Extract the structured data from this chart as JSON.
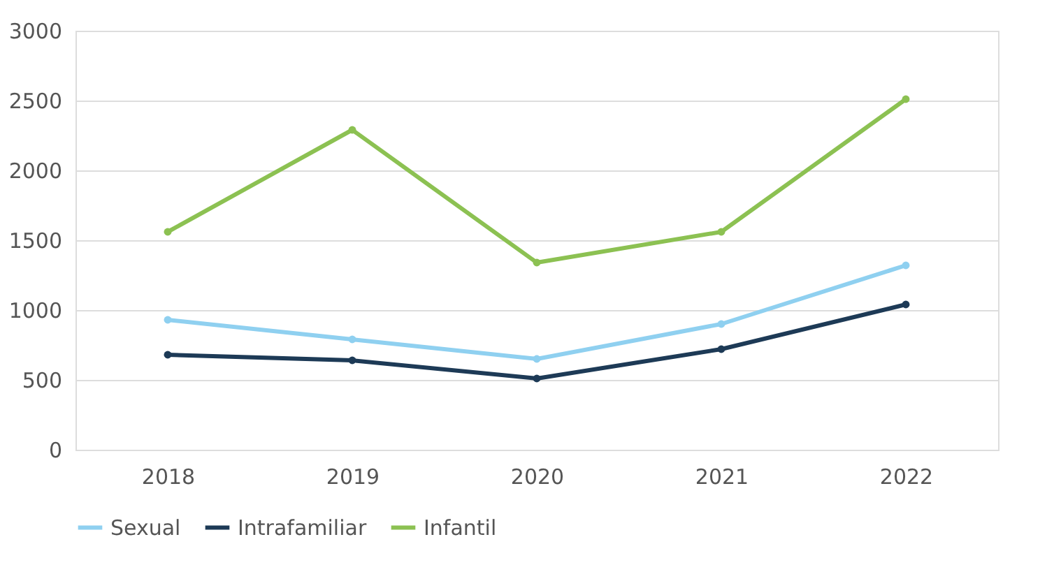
{
  "chart_data": {
    "type": "line",
    "categories": [
      "2018",
      "2019",
      "2020",
      "2021",
      "2022"
    ],
    "series": [
      {
        "name": "Sexual",
        "color": "#8fd0f0",
        "values": [
          930,
          790,
          650,
          900,
          1320
        ]
      },
      {
        "name": "Intrafamiliar",
        "color": "#1d3a56",
        "values": [
          680,
          640,
          510,
          720,
          1040
        ]
      },
      {
        "name": "Infantil",
        "color": "#8cc152",
        "values": [
          1560,
          2290,
          1340,
          1560,
          2510
        ]
      }
    ],
    "ylim": [
      0,
      3000
    ],
    "yticks": [
      0,
      500,
      1000,
      1500,
      2000,
      2500,
      3000
    ],
    "grid": "y",
    "legend": "bottom",
    "marker": "circle",
    "line_style": "solid"
  }
}
